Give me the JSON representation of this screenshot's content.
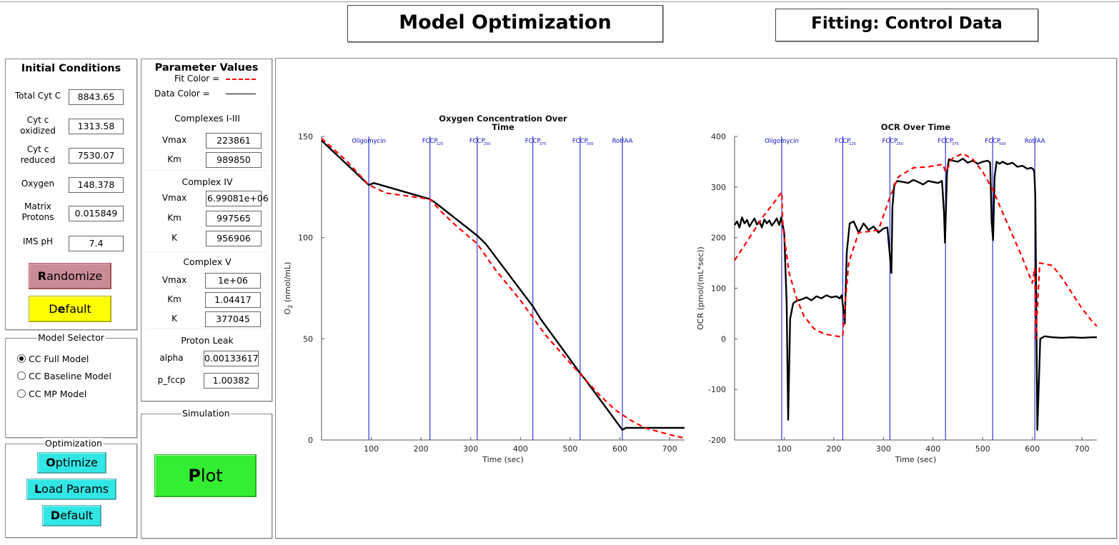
{
  "headers": {
    "main_title": "Model Optimization",
    "fitting_title": "Fitting: Control Data"
  },
  "initial_conditions": {
    "title": "Initial Conditions",
    "fields": [
      {
        "label": "Total Cyt C",
        "value": "8843.65"
      },
      {
        "label": "Cyt c\noxidized",
        "value": "1313.58"
      },
      {
        "label": "Cyt c\nreduced",
        "value": "7530.07"
      },
      {
        "label": "Oxygen",
        "value": "148.378"
      },
      {
        "label": "Matrix\nProtons",
        "value": "0.015849"
      },
      {
        "label": "IMS pH",
        "value": "7.4"
      }
    ],
    "randomize_label": "Randomize",
    "default_label": "Default"
  },
  "parameters": {
    "title": "Parameter Values",
    "fit_color_label": "Fit Color =",
    "data_color_label": "Data Color =",
    "groups": [
      {
        "title": "Complexes I-III",
        "rows": [
          {
            "label": "Vmax",
            "value": "223861"
          },
          {
            "label": "Km",
            "value": "989850"
          }
        ]
      },
      {
        "title": "Complex IV",
        "rows": [
          {
            "label": "Vmax",
            "value": "6.99081e+06"
          },
          {
            "label": "Km",
            "value": "997565"
          },
          {
            "label": "K",
            "value": "956906"
          }
        ]
      },
      {
        "title": "Complex V",
        "rows": [
          {
            "label": "Vmax",
            "value": "1e+06"
          },
          {
            "label": "Km",
            "value": "1.04417"
          },
          {
            "label": "K",
            "value": "377045"
          }
        ]
      },
      {
        "title": "Proton Leak",
        "rows": [
          {
            "label": "alpha",
            "value": "0.00133617"
          },
          {
            "label": "p_fccp",
            "value": "1.00382"
          }
        ]
      }
    ]
  },
  "model_selector": {
    "title": "Model Selector",
    "options": [
      {
        "label": "CC Full Model",
        "selected": true
      },
      {
        "label": "CC Baseline Model",
        "selected": false
      },
      {
        "label": "CC MP Model",
        "selected": false
      }
    ]
  },
  "optimization": {
    "title": "Optimization",
    "optimize_label": "Optimize",
    "load_params_label": "Load Params",
    "default_label": "Default"
  },
  "simulation": {
    "title": "Simulation",
    "plot_label": "Plot"
  },
  "colors": {
    "fit": "#ff0000",
    "data": "#000000",
    "event_lines": "#1010cc",
    "randomize_bg": "#c98b97",
    "default_bg": "#ffff00",
    "cyan_btn": "#33e6e6",
    "plot_btn": "#33ee33"
  },
  "chart_data": [
    {
      "type": "line",
      "title": "Oxygen Concentration Over\nTime",
      "xlabel": "Time (sec)",
      "ylabel": "O2 (nmol/mL)",
      "xlim": [
        0,
        730
      ],
      "ylim": [
        0,
        150
      ],
      "xticks": [
        100,
        200,
        300,
        400,
        500,
        600,
        700
      ],
      "yticks": [
        0,
        50,
        100,
        150
      ],
      "events": [
        {
          "t": 95,
          "label": "Oligomycin",
          "sub": ""
        },
        {
          "t": 218,
          "label": "FCCP",
          "sub": "125"
        },
        {
          "t": 313,
          "label": "FCCP",
          "sub": "250"
        },
        {
          "t": 425,
          "label": "FCCP",
          "sub": "375"
        },
        {
          "t": 520,
          "label": "FCCP",
          "sub": "500"
        },
        {
          "t": 605,
          "label": "Rot/AA",
          "sub": ""
        }
      ],
      "series": [
        {
          "role": "data",
          "style": "solid",
          "x": [
            0,
            95,
            105,
            218,
            230,
            313,
            330,
            425,
            440,
            520,
            530,
            605,
            612,
            730
          ],
          "y": [
            148,
            126,
            127,
            119,
            117,
            101,
            97,
            66,
            60,
            33,
            30,
            5,
            6,
            6
          ]
        },
        {
          "role": "fit",
          "style": "dashed",
          "x": [
            0,
            50,
            95,
            130,
            160,
            190,
            218,
            240,
            270,
            313,
            350,
            400,
            450,
            500,
            530,
            560,
            590,
            620,
            650,
            680,
            710,
            730
          ],
          "y": [
            149,
            138,
            126,
            122,
            121,
            120,
            119,
            113,
            106,
            97,
            84,
            69,
            52,
            38,
            30,
            22,
            15,
            10,
            6,
            4,
            2,
            1
          ]
        }
      ]
    },
    {
      "type": "line",
      "title": "OCR Over Time",
      "xlabel": "Time (sec)",
      "ylabel": "OCR (pmol/(mL*sec))",
      "xlim": [
        0,
        730
      ],
      "ylim": [
        -200,
        400
      ],
      "xticks": [
        100,
        200,
        300,
        400,
        500,
        600,
        700
      ],
      "yticks": [
        -200,
        -100,
        0,
        100,
        200,
        300,
        400
      ],
      "events": [
        {
          "t": 95,
          "label": "Oligomycin",
          "sub": ""
        },
        {
          "t": 218,
          "label": "FCCP",
          "sub": "125"
        },
        {
          "t": 313,
          "label": "FCCP",
          "sub": "250"
        },
        {
          "t": 425,
          "label": "FCCP",
          "sub": "375"
        },
        {
          "t": 520,
          "label": "FCCP",
          "sub": "500"
        },
        {
          "t": 605,
          "label": "Rot/AA",
          "sub": ""
        }
      ],
      "series": [
        {
          "role": "data",
          "style": "solid",
          "x": [
            0,
            5,
            10,
            15,
            20,
            25,
            30,
            35,
            40,
            45,
            50,
            55,
            60,
            65,
            70,
            75,
            80,
            85,
            90,
            94,
            96,
            100,
            105,
            108,
            112,
            118,
            125,
            135,
            145,
            155,
            165,
            175,
            185,
            195,
            205,
            212,
            216,
            219,
            222,
            226,
            232,
            240,
            250,
            260,
            270,
            280,
            290,
            300,
            308,
            312,
            316,
            318,
            322,
            328,
            340,
            350,
            360,
            370,
            380,
            390,
            400,
            410,
            418,
            422,
            424,
            428,
            432,
            440,
            450,
            460,
            470,
            480,
            490,
            500,
            510,
            515,
            518,
            521,
            524,
            528,
            534,
            540,
            550,
            560,
            570,
            580,
            590,
            598,
            602,
            604,
            606,
            610,
            616,
            625,
            640,
            660,
            680,
            700,
            720,
            730
          ],
          "y": [
            225,
            232,
            220,
            240,
            228,
            235,
            222,
            230,
            238,
            226,
            232,
            220,
            236,
            228,
            234,
            224,
            230,
            238,
            225,
            240,
            230,
            210,
            70,
            -160,
            40,
            70,
            75,
            78,
            82,
            76,
            84,
            80,
            86,
            82,
            84,
            80,
            86,
            60,
            30,
            170,
            228,
            232,
            210,
            228,
            215,
            222,
            210,
            218,
            220,
            175,
            130,
            260,
            305,
            312,
            310,
            308,
            314,
            310,
            305,
            312,
            310,
            308,
            312,
            250,
            190,
            330,
            355,
            352,
            350,
            356,
            348,
            352,
            346,
            350,
            352,
            348,
            230,
            195,
            320,
            350,
            346,
            350,
            345,
            348,
            340,
            342,
            336,
            338,
            335,
            330,
            280,
            -180,
            0,
            5,
            3,
            2,
            3,
            2,
            3,
            3
          ]
        },
        {
          "role": "fit",
          "style": "dashed",
          "x": [
            0,
            20,
            40,
            60,
            80,
            95,
            97,
            100,
            110,
            125,
            140,
            160,
            180,
            200,
            215,
            218,
            222,
            230,
            250,
            270,
            290,
            313,
            330,
            360,
            390,
            420,
            425,
            440,
            460,
            480,
            500,
            520,
            540,
            560,
            580,
            600,
            605,
            607,
            615,
            640,
            660,
            680,
            700,
            720,
            730
          ],
          "y": [
            155,
            185,
            215,
            245,
            270,
            290,
            230,
            200,
            130,
            80,
            45,
            20,
            10,
            6,
            4,
            5,
            60,
            150,
            210,
            212,
            215,
            280,
            320,
            338,
            340,
            345,
            330,
            358,
            366,
            355,
            330,
            295,
            250,
            205,
            160,
            110,
            140,
            0,
            150,
            145,
            120,
            90,
            60,
            35,
            25
          ]
        }
      ]
    }
  ]
}
